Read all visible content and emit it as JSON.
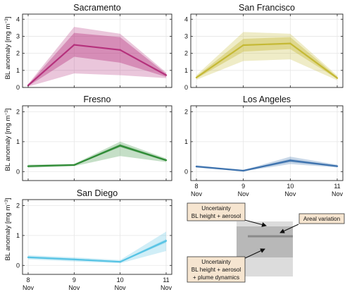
{
  "ylabel_main": "BL anomaly [mg m",
  "ylabel_sup": "−3",
  "ylabel_end": "]",
  "chart_data": [
    {
      "type": "line",
      "title": "Sacramento",
      "color": "#b5317c",
      "x": [
        "8 Nov",
        "9 Nov",
        "10 Nov",
        "11 Nov"
      ],
      "ylim": [
        0,
        4.3
      ],
      "yticks": [
        0,
        1,
        2,
        3,
        4
      ],
      "xticklabels_shown": false,
      "series": [
        {
          "values": [
            0.12,
            2.5,
            2.2,
            0.72
          ],
          "band_inner": {
            "lower": [
              0.08,
              1.8,
              1.45,
              0.62
            ],
            "upper": [
              0.16,
              3.2,
              2.95,
              0.8
            ]
          },
          "band_outer": {
            "lower": [
              0.05,
              0.82,
              0.72,
              0.55
            ],
            "upper": [
              0.2,
              3.55,
              3.15,
              0.88
            ]
          }
        }
      ]
    },
    {
      "type": "line",
      "title": "San Francisco",
      "color": "#c5b935",
      "x": [
        "8 Nov",
        "9 Nov",
        "10 Nov",
        "11 Nov"
      ],
      "ylim": [
        0,
        4.3
      ],
      "yticks": [
        0,
        1,
        2,
        3,
        4
      ],
      "xticklabels_shown": false,
      "series": [
        {
          "values": [
            0.58,
            2.48,
            2.58,
            0.55
          ],
          "band_inner": {
            "lower": [
              0.52,
              2.1,
              2.25,
              0.5
            ],
            "upper": [
              0.65,
              2.85,
              2.95,
              0.62
            ]
          },
          "band_outer": {
            "lower": [
              0.45,
              1.55,
              1.65,
              0.42
            ],
            "upper": [
              0.72,
              3.25,
              3.15,
              0.7
            ]
          }
        }
      ]
    },
    {
      "type": "line",
      "title": "Fresno",
      "color": "#2e8b35",
      "x": [
        "8 Nov",
        "9 Nov",
        "10 Nov",
        "11 Nov"
      ],
      "ylim": [
        -0.3,
        2.2
      ],
      "yticks": [
        0,
        1,
        2
      ],
      "xticklabels_shown": false,
      "series": [
        {
          "values": [
            0.18,
            0.22,
            0.87,
            0.38
          ],
          "band_inner": {
            "lower": [
              0.16,
              0.2,
              0.82,
              0.35
            ],
            "upper": [
              0.2,
              0.24,
              0.92,
              0.41
            ]
          },
          "band_outer": {
            "lower": [
              0.13,
              0.18,
              0.52,
              0.32
            ],
            "upper": [
              0.23,
              0.26,
              1.0,
              0.44
            ]
          }
        }
      ]
    },
    {
      "type": "line",
      "title": "Los Angeles",
      "color": "#3d72ae",
      "x": [
        "8 Nov",
        "9 Nov",
        "10 Nov",
        "11 Nov"
      ],
      "ylim": [
        -0.3,
        2.2
      ],
      "yticks": [
        0,
        1,
        2
      ],
      "xticklabels_shown": true,
      "series": [
        {
          "values": [
            0.17,
            0.03,
            0.37,
            0.18
          ],
          "band_inner": {
            "lower": [
              0.15,
              0.02,
              0.32,
              0.16
            ],
            "upper": [
              0.19,
              0.04,
              0.42,
              0.2
            ]
          },
          "band_outer": {
            "lower": [
              0.13,
              0.01,
              0.25,
              0.14
            ],
            "upper": [
              0.21,
              0.05,
              0.5,
              0.23
            ]
          }
        }
      ]
    },
    {
      "type": "line",
      "title": "San Diego",
      "color": "#56c3e4",
      "x": [
        "8 Nov",
        "9 Nov",
        "10 Nov",
        "11 Nov"
      ],
      "ylim": [
        -0.3,
        2.2
      ],
      "yticks": [
        0,
        1,
        2
      ],
      "xticklabels_shown": true,
      "series": [
        {
          "values": [
            0.27,
            0.2,
            0.12,
            0.82
          ],
          "band_inner": {
            "lower": [
              0.24,
              0.17,
              0.1,
              0.76
            ],
            "upper": [
              0.3,
              0.23,
              0.14,
              0.88
            ]
          },
          "band_outer": {
            "lower": [
              0.2,
              0.13,
              0.07,
              0.48
            ],
            "upper": [
              0.34,
              0.27,
              0.18,
              1.13
            ]
          }
        }
      ]
    }
  ],
  "legend": {
    "inner_label": [
      "Uncertainty",
      "BL height + aerosol"
    ],
    "areal_label": [
      "Areal variation"
    ],
    "outer_label": [
      "Uncertainty",
      "BL height + aerosol",
      "+ plume dynamics"
    ],
    "box_fill": "#f6e5d0",
    "box_stroke": "#333333"
  }
}
